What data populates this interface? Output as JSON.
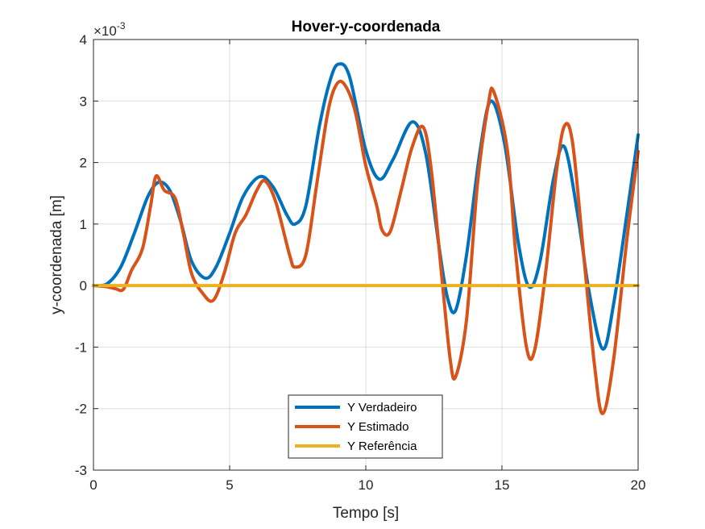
{
  "chart_data": {
    "type": "line",
    "title": "Hover-y-coordenada",
    "xlabel": "Tempo [s]",
    "ylabel": "y-coordenada [m]",
    "y_multiplier_base": "×10",
    "y_multiplier_exp": "-3",
    "xlim": [
      0,
      20
    ],
    "ylim": [
      -3,
      4
    ],
    "x_scale": "linear",
    "y_scale": "linear",
    "grid": true,
    "legend_position": "bottom-center",
    "x_ticks": [
      "0",
      "5",
      "10",
      "15",
      "20"
    ],
    "y_ticks": [
      "-3",
      "-2",
      "-1",
      "0",
      "1",
      "2",
      "3",
      "4"
    ],
    "series": [
      {
        "name": "Y Verdadeiro",
        "color": "#0072BD",
        "points": [
          [
            0,
            0
          ],
          [
            0.5,
            0.03
          ],
          [
            1.0,
            0.3
          ],
          [
            1.5,
            0.85
          ],
          [
            2.0,
            1.45
          ],
          [
            2.4,
            1.68
          ],
          [
            2.8,
            1.55
          ],
          [
            3.2,
            1.05
          ],
          [
            3.6,
            0.4
          ],
          [
            4.1,
            0.12
          ],
          [
            4.5,
            0.3
          ],
          [
            5.0,
            0.85
          ],
          [
            5.5,
            1.45
          ],
          [
            6.1,
            1.77
          ],
          [
            6.6,
            1.6
          ],
          [
            7.1,
            1.15
          ],
          [
            7.4,
            1.0
          ],
          [
            7.8,
            1.3
          ],
          [
            8.3,
            2.6
          ],
          [
            8.7,
            3.35
          ],
          [
            9.0,
            3.6
          ],
          [
            9.4,
            3.4
          ],
          [
            10.0,
            2.2
          ],
          [
            10.5,
            1.73
          ],
          [
            11.0,
            2.05
          ],
          [
            11.7,
            2.66
          ],
          [
            12.2,
            2.15
          ],
          [
            12.7,
            0.6
          ],
          [
            13.0,
            -0.2
          ],
          [
            13.3,
            -0.4
          ],
          [
            13.7,
            0.5
          ],
          [
            14.2,
            2.2
          ],
          [
            14.6,
            3.0
          ],
          [
            15.1,
            2.3
          ],
          [
            15.6,
            0.7
          ],
          [
            16.0,
            -0.02
          ],
          [
            16.4,
            0.4
          ],
          [
            16.9,
            1.75
          ],
          [
            17.3,
            2.25
          ],
          [
            17.8,
            1.1
          ],
          [
            18.2,
            -0.1
          ],
          [
            18.7,
            -1.03
          ],
          [
            19.1,
            -0.3
          ],
          [
            19.6,
            1.2
          ],
          [
            20.0,
            2.45
          ]
        ]
      },
      {
        "name": "Y Estimado",
        "color": "#D95319",
        "points": [
          [
            0,
            0
          ],
          [
            0.5,
            -0.02
          ],
          [
            0.8,
            -0.05
          ],
          [
            1.1,
            -0.06
          ],
          [
            1.4,
            0.25
          ],
          [
            1.8,
            0.6
          ],
          [
            2.1,
            1.3
          ],
          [
            2.3,
            1.78
          ],
          [
            2.6,
            1.55
          ],
          [
            3.0,
            1.42
          ],
          [
            3.3,
            0.85
          ],
          [
            3.6,
            0.2
          ],
          [
            4.0,
            -0.12
          ],
          [
            4.4,
            -0.24
          ],
          [
            4.8,
            0.2
          ],
          [
            5.2,
            0.85
          ],
          [
            5.6,
            1.15
          ],
          [
            6.0,
            1.55
          ],
          [
            6.3,
            1.7
          ],
          [
            6.7,
            1.35
          ],
          [
            7.2,
            0.5
          ],
          [
            7.4,
            0.3
          ],
          [
            7.8,
            0.5
          ],
          [
            8.2,
            1.65
          ],
          [
            8.6,
            2.8
          ],
          [
            8.9,
            3.25
          ],
          [
            9.2,
            3.28
          ],
          [
            9.6,
            2.85
          ],
          [
            10.0,
            1.95
          ],
          [
            10.4,
            1.3
          ],
          [
            10.6,
            0.9
          ],
          [
            10.9,
            0.88
          ],
          [
            11.3,
            1.55
          ],
          [
            11.7,
            2.25
          ],
          [
            12.1,
            2.58
          ],
          [
            12.4,
            1.9
          ],
          [
            12.8,
            0.1
          ],
          [
            13.1,
            -1.2
          ],
          [
            13.3,
            -1.48
          ],
          [
            13.7,
            -0.55
          ],
          [
            14.1,
            1.65
          ],
          [
            14.5,
            2.95
          ],
          [
            14.7,
            3.15
          ],
          [
            15.2,
            2.2
          ],
          [
            15.5,
            0.55
          ],
          [
            15.9,
            -1.0
          ],
          [
            16.2,
            -1.05
          ],
          [
            16.6,
            0.2
          ],
          [
            17.0,
            1.85
          ],
          [
            17.3,
            2.6
          ],
          [
            17.6,
            2.3
          ],
          [
            18.0,
            0.5
          ],
          [
            18.4,
            -1.3
          ],
          [
            18.7,
            -2.08
          ],
          [
            19.1,
            -1.2
          ],
          [
            19.6,
            0.8
          ],
          [
            20.0,
            2.18
          ]
        ]
      },
      {
        "name": "Y Referência",
        "color": "#EDB120",
        "points": [
          [
            0,
            0
          ],
          [
            20,
            0
          ]
        ]
      }
    ]
  }
}
